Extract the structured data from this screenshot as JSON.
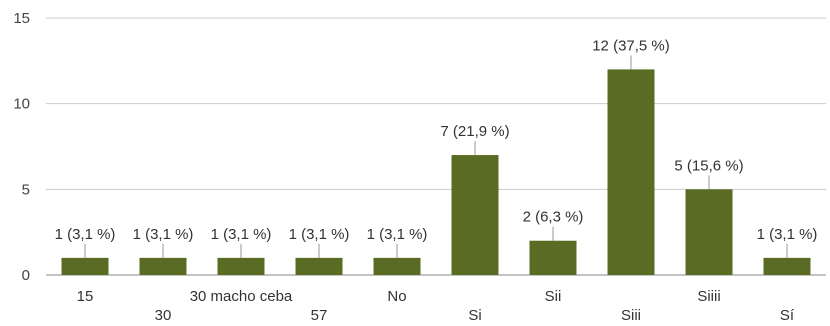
{
  "chart_data": {
    "type": "bar",
    "categories": [
      "15",
      "30",
      "30 macho ceba",
      "57",
      "No",
      "Si",
      "Sii",
      "Siii",
      "Siiii",
      "Sí"
    ],
    "values": [
      1,
      1,
      1,
      1,
      1,
      7,
      2,
      12,
      5,
      1
    ],
    "data_labels": [
      "1 (3,1 %)",
      "1 (3,1 %)",
      "1 (3,1 %)",
      "1 (3,1 %)",
      "1 (3,1 %)",
      "7 (21,9 %)",
      "2 (6,3 %)",
      "12 (37,5 %)",
      "5 (15,6 %)",
      "1 (3,1 %)"
    ],
    "yticks": [
      0,
      5,
      10,
      15
    ],
    "ylim": [
      0,
      15
    ],
    "grid": true,
    "bar_color": "#5a6b23",
    "grid_color": "#cccccc",
    "title": "",
    "xlabel": "",
    "ylabel": ""
  }
}
